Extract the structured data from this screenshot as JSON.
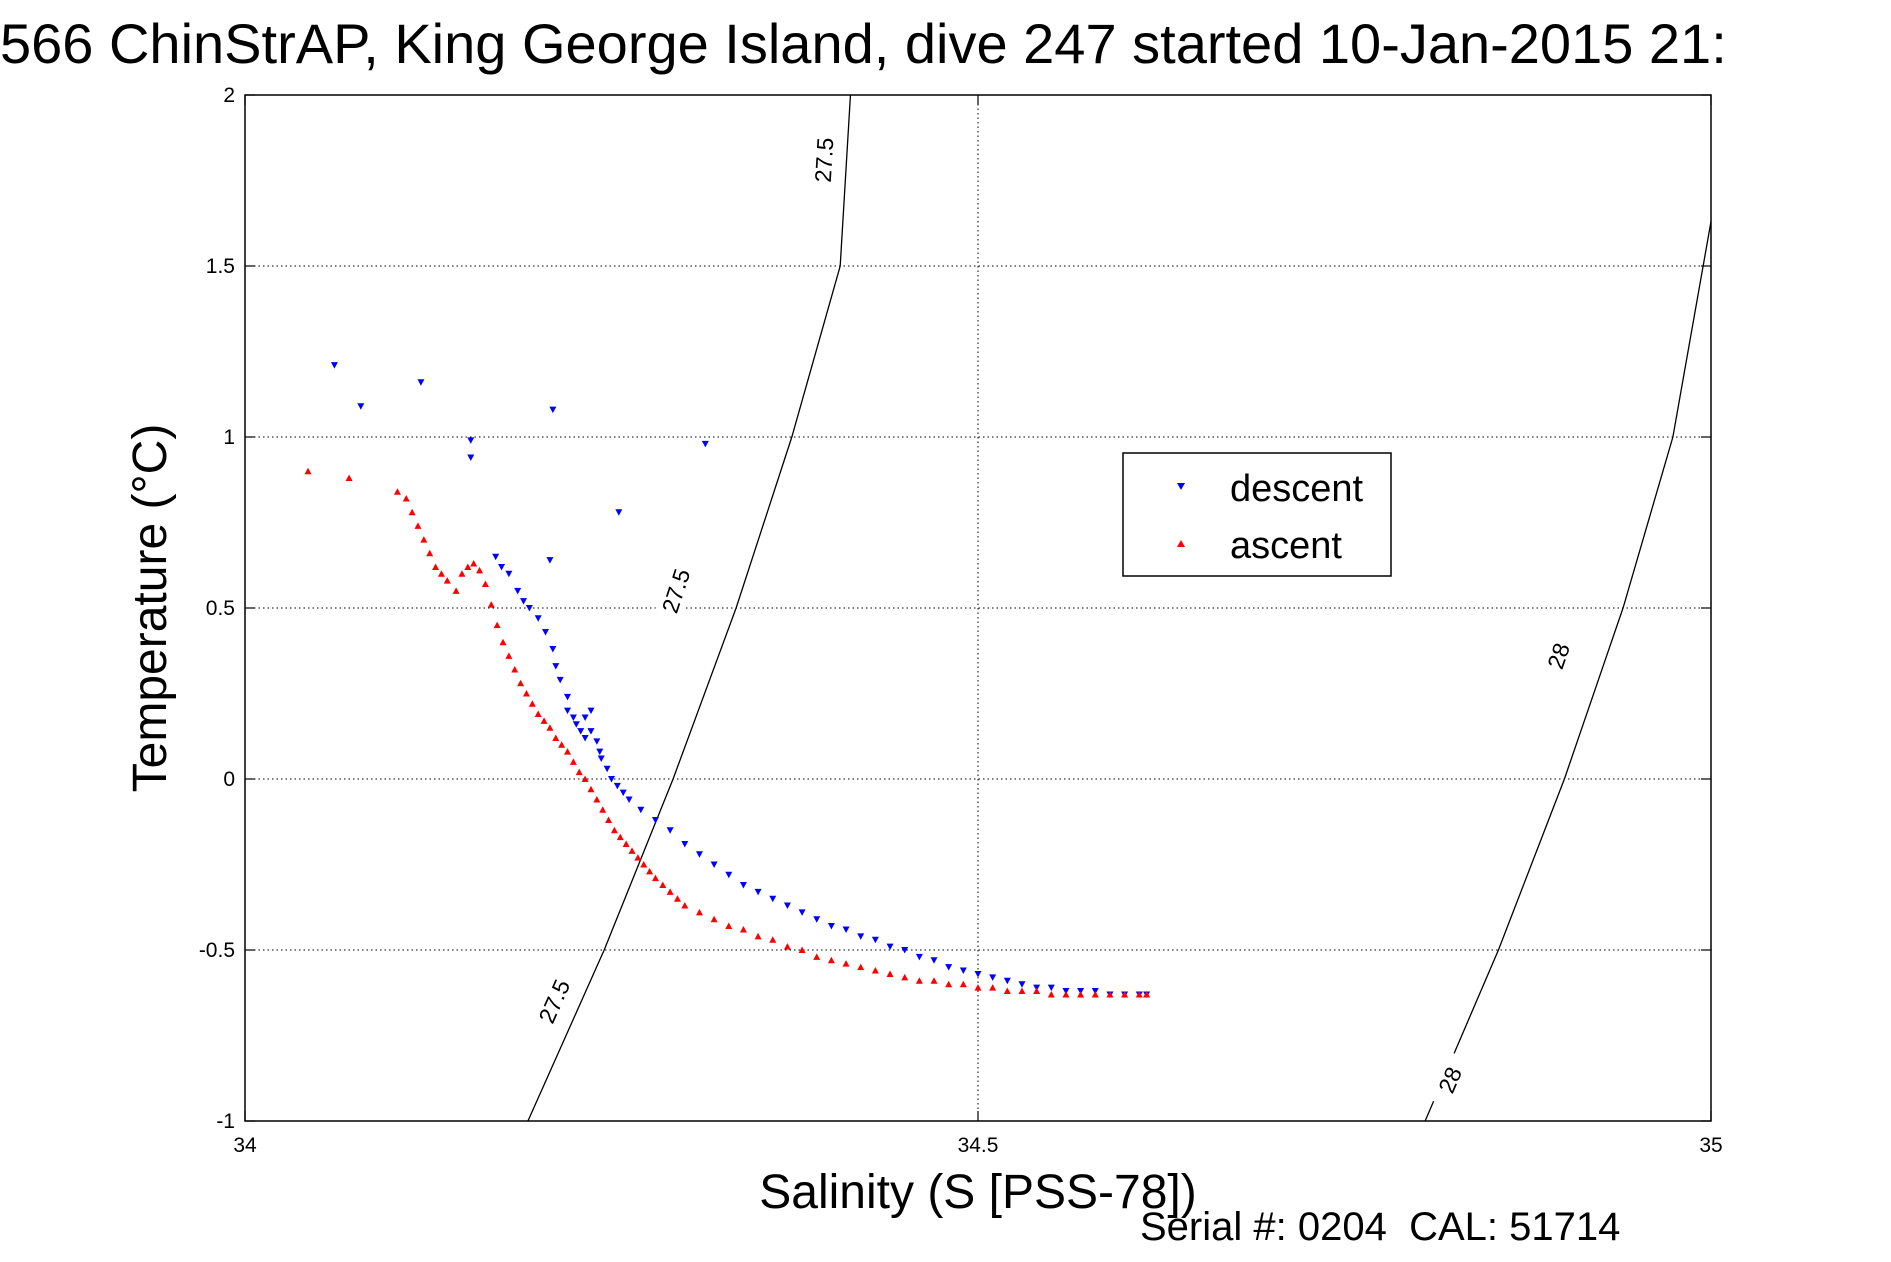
{
  "title": "566 ChinStrAP, King George Island, dive 247 started 10-Jan-2015 21:",
  "footer": "Serial #: 0204  CAL: 51714",
  "chart_data": {
    "type": "scatter",
    "title": "566 ChinStrAP, King George Island, dive 247 started 10-Jan-2015 21:",
    "xlabel": "Salinity (S [PSS-78])",
    "ylabel": "Temperature (°C)",
    "xlim": [
      34,
      35
    ],
    "ylim": [
      -1,
      2
    ],
    "xticks": [
      34,
      34.5,
      35
    ],
    "xtick_labels": [
      "34",
      "34.5",
      "35"
    ],
    "yticks": [
      -1,
      -0.5,
      0,
      0.5,
      1,
      1.5,
      2
    ],
    "ytick_labels": [
      "-1",
      "-0.5",
      "0",
      "0.5",
      "1",
      "1.5",
      "2"
    ],
    "grid": true,
    "legend_position": "center-right",
    "contours": [
      {
        "label": "27.5",
        "points": [
          [
            34.193,
            -1.0
          ],
          [
            34.245,
            -0.5
          ],
          [
            34.292,
            0.0
          ],
          [
            34.335,
            0.5
          ],
          [
            34.373,
            1.0
          ],
          [
            34.406,
            1.5
          ],
          [
            34.413,
            2.0
          ]
        ],
        "label_positions": [
          [
            34.211,
            -0.65
          ],
          [
            34.294,
            0.55
          ],
          [
            34.395,
            1.81
          ]
        ]
      },
      {
        "label": "28",
        "points": [
          [
            34.805,
            -1.0
          ],
          [
            34.855,
            -0.5
          ],
          [
            34.9,
            0.0
          ],
          [
            34.94,
            0.5
          ],
          [
            34.974,
            1.0
          ],
          [
            35.0,
            1.63
          ]
        ],
        "label_positions": [
          [
            34.822,
            -0.88
          ],
          [
            34.896,
            0.36
          ]
        ]
      }
    ],
    "series": [
      {
        "name": "descent",
        "color": "#0000ff",
        "marker": "triangle-down",
        "x": [
          34.061,
          34.079,
          34.12,
          34.154,
          34.21,
          34.154,
          34.171,
          34.314,
          34.255,
          34.208,
          34.175,
          34.18,
          34.186,
          34.19,
          34.194,
          34.2,
          34.205,
          34.21,
          34.212,
          34.215,
          34.22,
          34.22,
          34.224,
          34.226,
          34.229,
          34.232,
          34.232,
          34.236,
          34.236,
          34.24,
          34.242,
          34.243,
          34.247,
          34.25,
          34.254,
          34.258,
          34.262,
          34.27,
          34.28,
          34.29,
          34.3,
          34.31,
          34.32,
          34.33,
          34.34,
          34.35,
          34.36,
          34.37,
          34.38,
          34.39,
          34.4,
          34.41,
          34.42,
          34.43,
          34.44,
          34.45,
          34.46,
          34.47,
          34.48,
          34.49,
          34.5,
          34.51,
          34.52,
          34.53,
          34.54,
          34.55,
          34.56,
          34.57,
          34.58,
          34.59,
          34.6,
          34.61,
          34.615
        ],
        "y": [
          1.21,
          1.09,
          1.16,
          0.94,
          1.08,
          0.99,
          0.65,
          0.98,
          0.78,
          0.64,
          0.62,
          0.6,
          0.55,
          0.52,
          0.5,
          0.47,
          0.43,
          0.38,
          0.33,
          0.29,
          0.24,
          0.2,
          0.18,
          0.16,
          0.14,
          0.12,
          0.18,
          0.2,
          0.14,
          0.11,
          0.08,
          0.06,
          0.03,
          0.0,
          -0.02,
          -0.04,
          -0.06,
          -0.09,
          -0.12,
          -0.15,
          -0.19,
          -0.22,
          -0.25,
          -0.28,
          -0.31,
          -0.33,
          -0.35,
          -0.37,
          -0.39,
          -0.41,
          -0.43,
          -0.44,
          -0.46,
          -0.47,
          -0.49,
          -0.5,
          -0.52,
          -0.53,
          -0.55,
          -0.56,
          -0.57,
          -0.58,
          -0.59,
          -0.6,
          -0.61,
          -0.61,
          -0.62,
          -0.62,
          -0.62,
          -0.63,
          -0.63,
          -0.63,
          -0.63
        ]
      },
      {
        "name": "ascent",
        "color": "#ff0000",
        "marker": "triangle-up",
        "x": [
          34.043,
          34.071,
          34.104,
          34.11,
          34.114,
          34.118,
          34.122,
          34.126,
          34.13,
          34.134,
          34.138,
          34.144,
          34.148,
          34.152,
          34.156,
          34.16,
          34.164,
          34.168,
          34.172,
          34.176,
          34.18,
          34.184,
          34.188,
          34.192,
          34.196,
          34.2,
          34.204,
          34.208,
          34.212,
          34.216,
          34.22,
          34.224,
          34.228,
          34.232,
          34.236,
          34.24,
          34.244,
          34.248,
          34.252,
          34.256,
          34.26,
          34.264,
          34.268,
          34.272,
          34.276,
          34.28,
          34.285,
          34.29,
          34.295,
          34.3,
          34.31,
          34.32,
          34.33,
          34.34,
          34.35,
          34.36,
          34.37,
          34.38,
          34.39,
          34.4,
          34.41,
          34.42,
          34.43,
          34.44,
          34.45,
          34.46,
          34.47,
          34.48,
          34.49,
          34.5,
          34.51,
          34.52,
          34.53,
          34.54,
          34.55,
          34.56,
          34.57,
          34.58,
          34.59,
          34.6,
          34.61,
          34.615
        ],
        "y": [
          0.9,
          0.88,
          0.84,
          0.82,
          0.78,
          0.74,
          0.7,
          0.66,
          0.62,
          0.6,
          0.58,
          0.55,
          0.6,
          0.62,
          0.63,
          0.61,
          0.57,
          0.51,
          0.45,
          0.4,
          0.36,
          0.32,
          0.28,
          0.25,
          0.22,
          0.19,
          0.17,
          0.15,
          0.12,
          0.1,
          0.08,
          0.05,
          0.02,
          0.0,
          -0.03,
          -0.06,
          -0.09,
          -0.12,
          -0.15,
          -0.17,
          -0.19,
          -0.21,
          -0.23,
          -0.25,
          -0.27,
          -0.29,
          -0.31,
          -0.33,
          -0.35,
          -0.37,
          -0.39,
          -0.41,
          -0.43,
          -0.44,
          -0.46,
          -0.47,
          -0.49,
          -0.5,
          -0.52,
          -0.53,
          -0.54,
          -0.55,
          -0.56,
          -0.57,
          -0.58,
          -0.59,
          -0.59,
          -0.6,
          -0.6,
          -0.61,
          -0.61,
          -0.62,
          -0.62,
          -0.62,
          -0.63,
          -0.63,
          -0.63,
          -0.63,
          -0.63,
          -0.63,
          -0.63,
          -0.63
        ]
      }
    ]
  }
}
